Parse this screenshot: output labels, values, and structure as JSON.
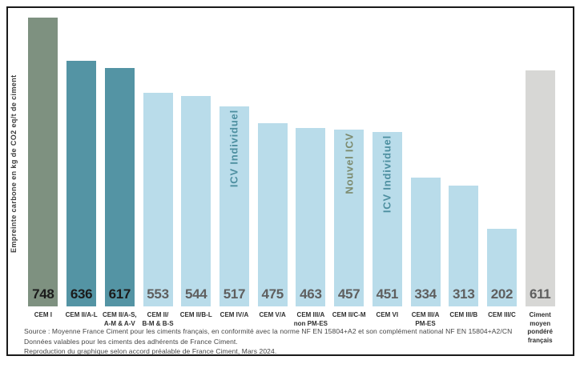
{
  "chart_data": {
    "type": "bar",
    "title": "",
    "ylabel": "Empreinte carbone en kg de CO2 eq/t de ciment",
    "xlabel": "",
    "ylim": [
      0,
      760
    ],
    "grid": false,
    "legend": "none",
    "bars": [
      {
        "value": 748,
        "label_lines": [
          "CEM I"
        ],
        "bar_color": "#7E9180",
        "value_color": "#1B1B1B"
      },
      {
        "value": 636,
        "label_lines": [
          "CEM II/A-L"
        ],
        "bar_color": "#5494A4",
        "value_color": "#1B1B1B"
      },
      {
        "value": 617,
        "label_lines": [
          "CEM II/A-S,",
          "A-M & A-V"
        ],
        "bar_color": "#5494A4",
        "value_color": "#1B1B1B"
      },
      {
        "value": 553,
        "label_lines": [
          "CEM II/",
          "B-M & B-S"
        ],
        "bar_color": "#B9DCEA",
        "value_color": "#5F5F5F"
      },
      {
        "value": 544,
        "label_lines": [
          "CEM II/B-L"
        ],
        "bar_color": "#B9DCEA",
        "value_color": "#5F5F5F"
      },
      {
        "value": 517,
        "label_lines": [
          "CEM IV/A"
        ],
        "bar_color": "#B9DCEA",
        "value_color": "#5F5F5F",
        "annotation": {
          "text": "ICV Individuel",
          "color": "#4D8FA0"
        }
      },
      {
        "value": 475,
        "label_lines": [
          "CEM V/A"
        ],
        "bar_color": "#B9DCEA",
        "value_color": "#5F5F5F"
      },
      {
        "value": 463,
        "label_lines": [
          "CEM III/A",
          "non PM-ES"
        ],
        "bar_color": "#B9DCEA",
        "value_color": "#5F5F5F"
      },
      {
        "value": 457,
        "label_lines": [
          "CEM II/C-M"
        ],
        "bar_color": "#B9DCEA",
        "value_color": "#5F5F5F",
        "annotation": {
          "text": "Nouvel ICV",
          "color": "#7D8B6F"
        }
      },
      {
        "value": 451,
        "label_lines": [
          "CEM VI"
        ],
        "bar_color": "#B9DCEA",
        "value_color": "#5F5F5F",
        "annotation": {
          "text": "ICV Individuel",
          "color": "#4D8FA0"
        }
      },
      {
        "value": 334,
        "label_lines": [
          "CEM III/A",
          "PM-ES"
        ],
        "bar_color": "#B9DCEA",
        "value_color": "#5F5F5F"
      },
      {
        "value": 313,
        "label_lines": [
          "CEM III/B"
        ],
        "bar_color": "#B9DCEA",
        "value_color": "#5F5F5F"
      },
      {
        "value": 202,
        "label_lines": [
          "CEM III/C"
        ],
        "bar_color": "#B9DCEA",
        "value_color": "#5F5F5F"
      },
      {
        "value": 611,
        "label_lines": [
          "Ciment",
          "moyen",
          "pondéré",
          "français"
        ],
        "bar_color": "#D7D7D5",
        "value_color": "#5F5F5F"
      }
    ]
  },
  "footer": {
    "source_lines": [
      "Source : Moyenne France Ciment pour les ciments français, en conformité avec la norme NF EN 15804+A2 et son complément national NF EN 15804+A2/CN",
      "Données valables pour les ciments des adhérents de France Ciment.",
      "Reproduction du graphique selon accord préalable de France Ciment, Mars 2024."
    ]
  },
  "colors": {
    "frame_border": "#1A1A1A",
    "background": "#FFFFFF",
    "axis_label_text": "#3C3C3C",
    "category_label_text": "#2E2E2E",
    "source_text": "#454545"
  }
}
